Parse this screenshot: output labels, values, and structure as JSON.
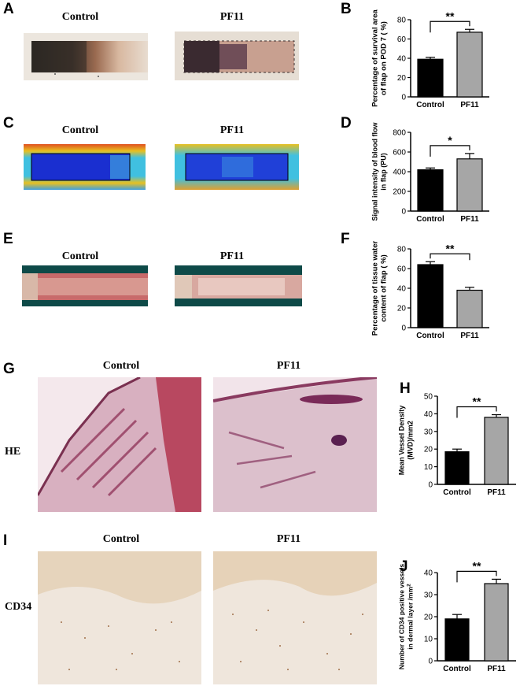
{
  "figure": {
    "panels": {
      "A": {
        "label": "A",
        "left_title": "Control",
        "right_title": "PF11"
      },
      "C": {
        "label": "C",
        "left_title": "Control",
        "right_title": "PF11"
      },
      "E": {
        "label": "E",
        "left_title": "Control",
        "right_title": "PF11"
      },
      "G": {
        "label": "G",
        "left_title": "Control",
        "right_title": "PF11",
        "row_label": "HE"
      },
      "I": {
        "label": "I",
        "left_title": "Control",
        "right_title": "PF11",
        "row_label": "CD34"
      }
    },
    "colors": {
      "control_bar": "#000000",
      "pf11_bar": "#a6a6a6",
      "he_stain": "#b45a78",
      "cd34_background": "#eee4d8",
      "laser_doppler_low": "#1a2fd0",
      "laser_doppler_high": "#e8c020"
    }
  },
  "chart_data": [
    {
      "panel": "B",
      "type": "bar",
      "categories": [
        "Control",
        "PF11"
      ],
      "values": [
        39,
        67
      ],
      "errors": [
        2,
        3
      ],
      "ylabel_lines": [
        "Percentage of survival area",
        "of flap on POD 7 ( %)"
      ],
      "ylim": [
        0,
        80
      ],
      "yticks": [
        0,
        20,
        40,
        60,
        80
      ],
      "significance": "**",
      "colors": [
        "#000000",
        "#a6a6a6"
      ]
    },
    {
      "panel": "D",
      "type": "bar",
      "categories": [
        "Control",
        "PF11"
      ],
      "values": [
        420,
        530
      ],
      "errors": [
        18,
        55
      ],
      "ylabel_lines": [
        "Signal intensity of blood flow",
        "in flap  (PU)"
      ],
      "ylim": [
        0,
        800
      ],
      "yticks": [
        0,
        200,
        400,
        600,
        800
      ],
      "significance": "*",
      "colors": [
        "#000000",
        "#a6a6a6"
      ]
    },
    {
      "panel": "F",
      "type": "bar",
      "categories": [
        "Control",
        "PF11"
      ],
      "values": [
        64,
        38
      ],
      "errors": [
        3,
        3
      ],
      "ylabel_lines": [
        "Percentage of tissue water",
        "content of flap ( %)"
      ],
      "ylim": [
        0,
        80
      ],
      "yticks": [
        0,
        20,
        40,
        60,
        80
      ],
      "significance": "**",
      "colors": [
        "#000000",
        "#a6a6a6"
      ]
    },
    {
      "panel": "H",
      "type": "bar",
      "categories": [
        "Control",
        "PF11"
      ],
      "values": [
        18.5,
        38
      ],
      "errors": [
        1.5,
        1.5
      ],
      "ylabel_lines": [
        "Mean Vessel Density",
        "(MVD)/mm2"
      ],
      "ylim": [
        0,
        50
      ],
      "yticks": [
        0,
        10,
        20,
        30,
        40,
        50
      ],
      "significance": "**",
      "colors": [
        "#000000",
        "#a6a6a6"
      ]
    },
    {
      "panel": "J",
      "type": "bar",
      "categories": [
        "Control",
        "PF11"
      ],
      "values": [
        19,
        35
      ],
      "errors": [
        2,
        2
      ],
      "ylabel_lines": [
        "Number of CD34 positive vessels",
        "in dermal layer /mm"
      ],
      "ylabel_superscript": "2",
      "ylim": [
        0,
        40
      ],
      "yticks": [
        0,
        10,
        20,
        30,
        40
      ],
      "significance": "**",
      "colors": [
        "#000000",
        "#a6a6a6"
      ]
    }
  ]
}
